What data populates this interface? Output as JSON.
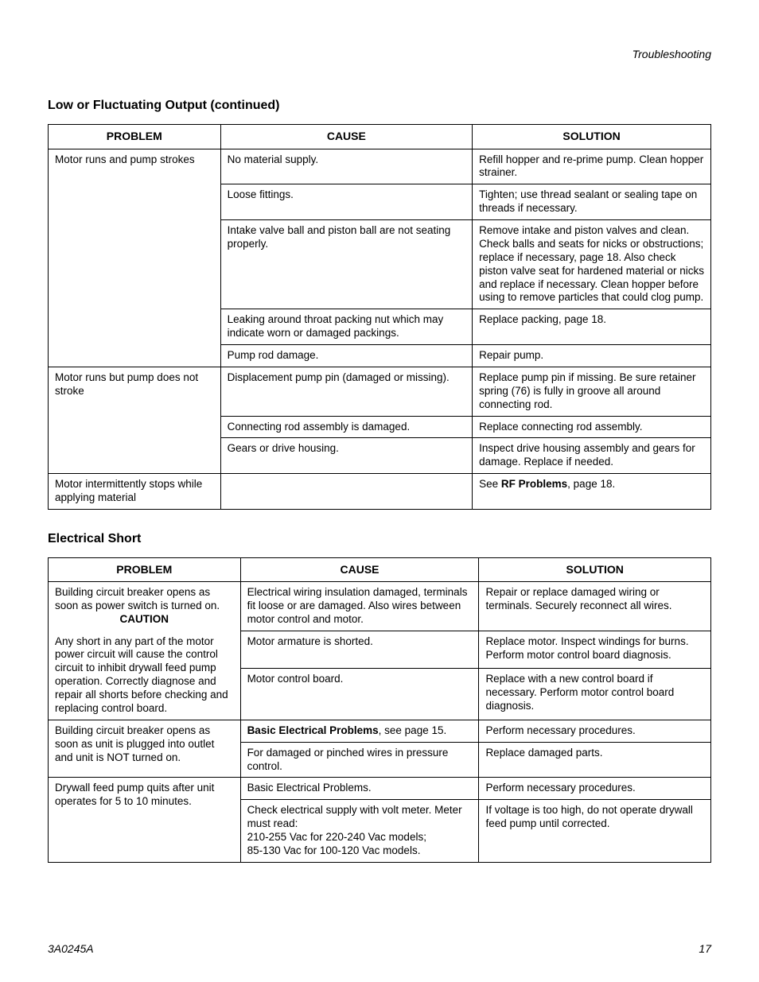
{
  "running_head": "Troubleshooting",
  "footer": {
    "doc_id": "3A0245A",
    "page_number": "17"
  },
  "section1": {
    "title": "Low or Fluctuating Output (continued)",
    "headers": {
      "problem": "PROBLEM",
      "cause": "CAUSE",
      "solution": "SOLUTION"
    },
    "problems": [
      {
        "problem": "Motor runs and pump strokes",
        "rows": [
          {
            "cause": "No material supply.",
            "solution": "Refill hopper and re-prime pump. Clean hopper strainer."
          },
          {
            "cause": "Loose fittings.",
            "solution": "Tighten; use thread sealant or sealing tape on threads if necessary."
          },
          {
            "cause": "Intake valve ball and piston ball are not seating properly.",
            "solution": "Remove intake and piston valves and clean. Check balls and seats for nicks or obstructions; replace if necessary, page 18. Also check piston valve seat for hardened material or nicks and replace if necessary. Clean hopper before using to remove particles that could clog pump."
          },
          {
            "cause": "Leaking around throat packing nut which may indicate worn or damaged packings.",
            "solution": "Replace packing, page 18."
          },
          {
            "cause": "Pump rod damage.",
            "solution": "Repair pump."
          }
        ]
      },
      {
        "problem": "Motor runs but pump does not stroke",
        "rows": [
          {
            "cause": "Displacement pump pin (damaged or missing).",
            "solution": "Replace pump pin if missing. Be sure retainer spring (76) is fully in groove all around connecting rod."
          },
          {
            "cause": "Connecting rod assembly is damaged.",
            "solution": "Replace connecting rod assembly."
          },
          {
            "cause": "Gears or drive housing.",
            "solution": "Inspect drive housing assembly and gears for damage. Replace if needed."
          }
        ]
      },
      {
        "problem": "Motor intermittently stops while applying material",
        "rows": [
          {
            "cause": "",
            "solution_prefix": "See ",
            "solution_bold": "RF Problems",
            "solution_suffix": ", page 18."
          }
        ]
      }
    ]
  },
  "section2": {
    "title": "Electrical Short",
    "headers": {
      "problem": "PROBLEM",
      "cause": "CAUSE",
      "solution": "SOLUTION"
    },
    "p1": {
      "line1": "Building circuit breaker opens as soon as power switch is turned on.",
      "caution": "CAUTION",
      "line2": "Any short in any part of the motor power circuit will cause the control circuit to inhibit drywall feed pump operation. Correctly diagnose and repair all shorts before checking and replacing control board.",
      "rows": [
        {
          "cause": "Electrical wiring insulation damaged, terminals fit loose or are damaged. Also wires between motor control and motor.",
          "solution": "Repair or replace damaged wiring or terminals. Securely reconnect all wires."
        },
        {
          "cause": "Motor armature is shorted.",
          "solution": "Replace motor. Inspect windings for burns. Perform motor control board diagnosis."
        },
        {
          "cause": "Motor control board.",
          "solution": "Replace with a new control board if necessary. Perform motor control board diagnosis."
        }
      ]
    },
    "p2": {
      "problem": "Building circuit breaker opens as soon as unit is plugged into outlet and unit is NOT turned on.",
      "rows": [
        {
          "cause_bold": "Basic Electrical Problems",
          "cause_suffix": ", see page 15.",
          "solution": "Perform necessary procedures."
        },
        {
          "cause": "For damaged or pinched wires in pressure control.",
          "solution": "Replace damaged parts."
        }
      ]
    },
    "p3": {
      "problem": "Drywall feed pump quits after unit operates for 5 to 10 minutes.",
      "rows": [
        {
          "cause": "Basic Electrical Problems.",
          "solution": "Perform necessary procedures."
        },
        {
          "cause": "Check electrical supply with volt meter. Meter must read:\n210-255 Vac for 220-240 Vac models;\n85-130 Vac for 100-120 Vac models.",
          "solution": "If voltage is too high, do not operate drywall feed pump until corrected."
        }
      ]
    }
  }
}
